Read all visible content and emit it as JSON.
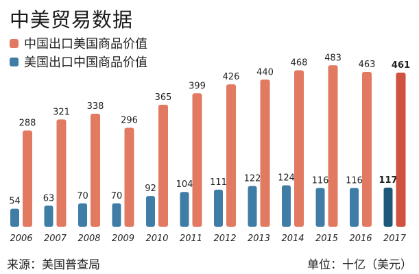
{
  "chart_data": {
    "type": "bar",
    "title": "中美贸易数据",
    "categories": [
      "2006",
      "2007",
      "2008",
      "2009",
      "2010",
      "2011",
      "2012",
      "2013",
      "2014",
      "2015",
      "2016",
      "2017"
    ],
    "series": [
      {
        "name": "中国出口美国商品价值",
        "color": "#e27a62",
        "highlight_color": "#cf5340",
        "values": [
          288,
          321,
          338,
          296,
          365,
          399,
          426,
          440,
          468,
          483,
          463,
          461
        ]
      },
      {
        "name": "美国出口中国商品价值",
        "color": "#3f7da6",
        "highlight_color": "#1d5878",
        "values": [
          54,
          63,
          70,
          70,
          92,
          104,
          111,
          122,
          124,
          116,
          116,
          117
        ]
      }
    ],
    "highlight_category": "2017",
    "ylim": [
      0,
      500
    ],
    "grid": false,
    "legend_placement": "top-left",
    "source": "来源：美国普查局",
    "unit": "单位：十亿（美元）"
  }
}
